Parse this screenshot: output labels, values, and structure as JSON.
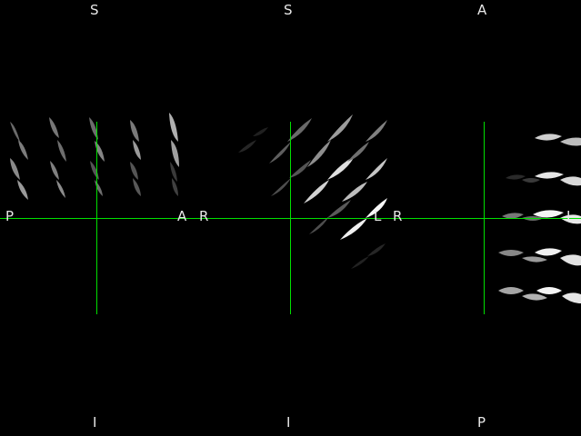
{
  "viewer": {
    "crosshair_color": "#00e000",
    "background": "#000000",
    "panels": [
      {
        "name": "sagittal",
        "labels": {
          "top": "S",
          "bottom": "I",
          "left": "P",
          "right": "A"
        }
      },
      {
        "name": "coronal",
        "labels": {
          "top": "S",
          "bottom": "I",
          "left": "R",
          "right": "L"
        }
      },
      {
        "name": "axial",
        "labels": {
          "top": "A",
          "bottom": "P",
          "left": "R",
          "right": "L"
        }
      }
    ]
  }
}
